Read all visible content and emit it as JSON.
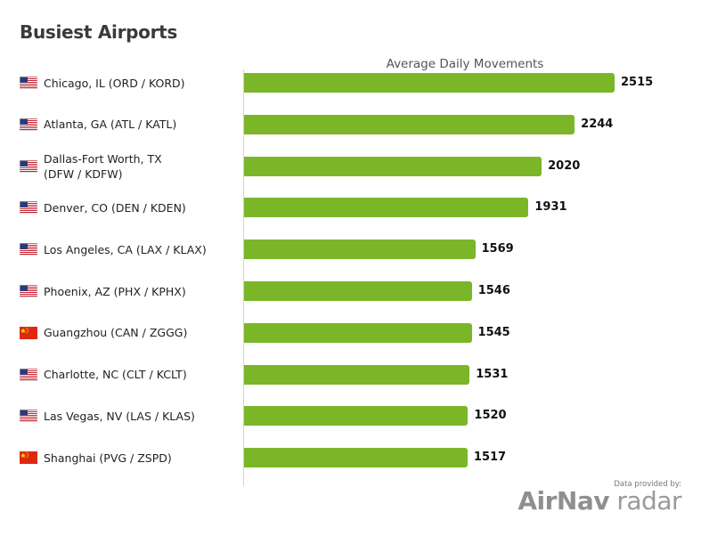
{
  "title": "Busiest Airports",
  "chart_data": {
    "type": "bar",
    "orientation": "horizontal",
    "series_label": "Average Daily Movements",
    "categories": [
      "Chicago, IL (ORD / KORD)",
      "Atlanta, GA (ATL / KATL)",
      "Dallas-Fort Worth, TX\n(DFW / KDFW)",
      "Denver, CO (DEN / KDEN)",
      "Los Angeles, CA (LAX / KLAX)",
      "Phoenix, AZ (PHX / KPHX)",
      "Guangzhou (CAN / ZGGG)",
      "Charlotte, NC (CLT / KCLT)",
      "Las Vegas, NV (LAS / KLAS)",
      "Shanghai (PVG / ZSPD)"
    ],
    "flags": [
      "us-flag-icon",
      "us-flag-icon",
      "us-flag-icon",
      "us-flag-icon",
      "us-flag-icon",
      "us-flag-icon",
      "cn-flag-icon",
      "us-flag-icon",
      "us-flag-icon",
      "cn-flag-icon"
    ],
    "values": [
      2515,
      2244,
      2020,
      1931,
      1569,
      1546,
      1545,
      1531,
      1520,
      1517
    ],
    "xlim": [
      0,
      2515
    ],
    "bar_color": "#7ab627",
    "grid": false,
    "legend": "none"
  },
  "credit": {
    "provided_by": "Data provided by:",
    "logo_part1": "AirNav",
    "logo_part2": " radar"
  }
}
